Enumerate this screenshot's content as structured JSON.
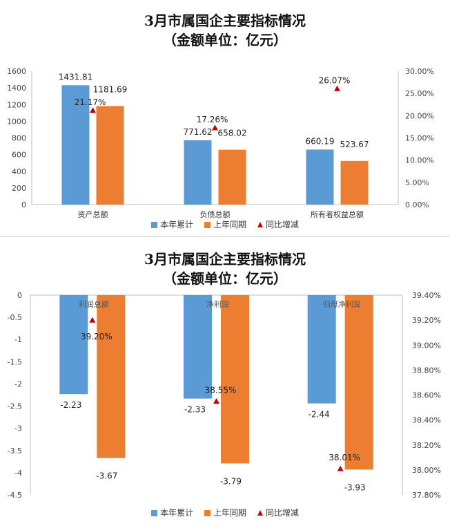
{
  "colors": {
    "current": "#5b9bd5",
    "previous": "#ed7d31",
    "ratio": "#c00000"
  },
  "panel1": {
    "title_line1": "3月市属国企主要指标情况",
    "title_line2": "（金额单位：亿元）"
  },
  "panel2": {
    "title_line1": "3月市属国企主要指标情况",
    "title_line2": "（金额单位：亿元）"
  },
  "legend": {
    "current": "本年累计",
    "previous": "上年同期",
    "ratio": "同比增减"
  },
  "chart_data": [
    {
      "type": "bar",
      "categories": [
        "资产总额",
        "负债总额",
        "所有者权益总额"
      ],
      "series": [
        {
          "name": "本年累计",
          "values": [
            1431.81,
            771.62,
            660.19
          ],
          "labels": [
            "1431.81",
            "771.62",
            "660.19"
          ]
        },
        {
          "name": "上年同期",
          "values": [
            1181.69,
            658.02,
            523.67
          ],
          "labels": [
            "1181.69",
            "658.02",
            "523.67"
          ]
        },
        {
          "name": "同比增减",
          "type": "scatter",
          "axis": "right",
          "values": [
            21.17,
            17.26,
            26.07
          ],
          "labels": [
            "21.17%",
            "17.26%",
            "26.07%"
          ]
        }
      ],
      "ylim": [
        0,
        1600
      ],
      "yticks": [
        "0",
        "200",
        "400",
        "600",
        "800",
        "1000",
        "1200",
        "1400",
        "1600"
      ],
      "y2lim": [
        0,
        30
      ],
      "y2ticks": [
        "0.00%",
        "5.00%",
        "10.00%",
        "15.00%",
        "20.00%",
        "25.00%",
        "30.00%"
      ],
      "legend_position": "bottom",
      "grid": false
    },
    {
      "type": "bar",
      "categories": [
        "利润总额",
        "净利润",
        "归母净利润"
      ],
      "series": [
        {
          "name": "本年累计",
          "values": [
            -2.23,
            -2.33,
            -2.44
          ],
          "labels": [
            "-2.23",
            "-2.33",
            "-2.44"
          ]
        },
        {
          "name": "上年同期",
          "values": [
            -3.67,
            -3.79,
            -3.93
          ],
          "labels": [
            "-3.67",
            "-3.79",
            "-3.93"
          ]
        },
        {
          "name": "同比增减",
          "type": "scatter",
          "axis": "right",
          "values": [
            39.2,
            38.55,
            38.01
          ],
          "labels": [
            "39.20%",
            "38.55%",
            "38.01%"
          ]
        }
      ],
      "ylim": [
        -4.5,
        0
      ],
      "yticks": [
        "0",
        "-0.5",
        "-1",
        "-1.5",
        "-2",
        "-2.5",
        "-3",
        "-3.5",
        "-4",
        "-4.5"
      ],
      "y2lim": [
        37.8,
        39.4
      ],
      "y2ticks": [
        "39.40%",
        "39.20%",
        "39.00%",
        "38.80%",
        "38.60%",
        "38.40%",
        "38.20%",
        "38.00%",
        "37.80%"
      ],
      "legend_position": "bottom",
      "grid": false
    }
  ]
}
